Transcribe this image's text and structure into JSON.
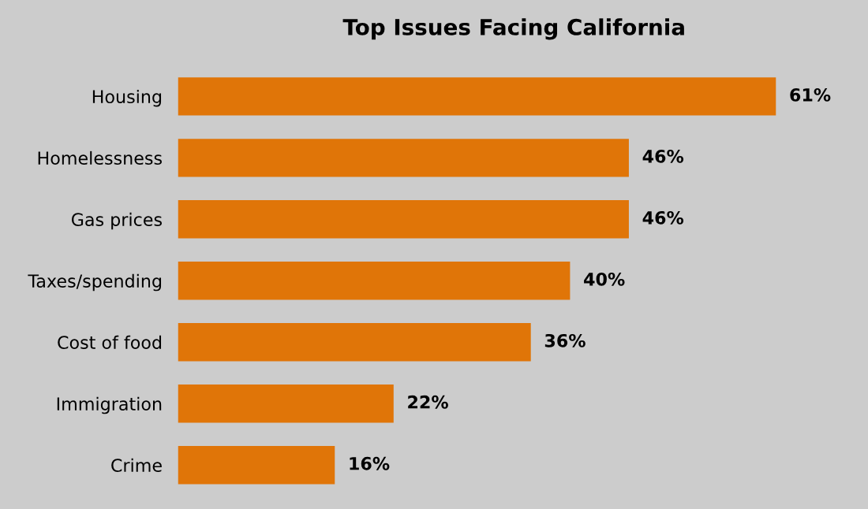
{
  "chart_data": {
    "type": "bar",
    "orientation": "horizontal",
    "title": "Top Issues Facing California",
    "categories": [
      "Housing",
      "Homelessness",
      "Gas prices",
      "Taxes/spending",
      "Cost of food",
      "Immigration",
      "Crime"
    ],
    "values": [
      61,
      46,
      46,
      40,
      36,
      22,
      16
    ],
    "value_labels": [
      "61%",
      "46%",
      "46%",
      "40%",
      "36%",
      "22%",
      "16%"
    ],
    "color": "#e07508",
    "grid": false,
    "legend": false,
    "tick_labels": "y"
  }
}
